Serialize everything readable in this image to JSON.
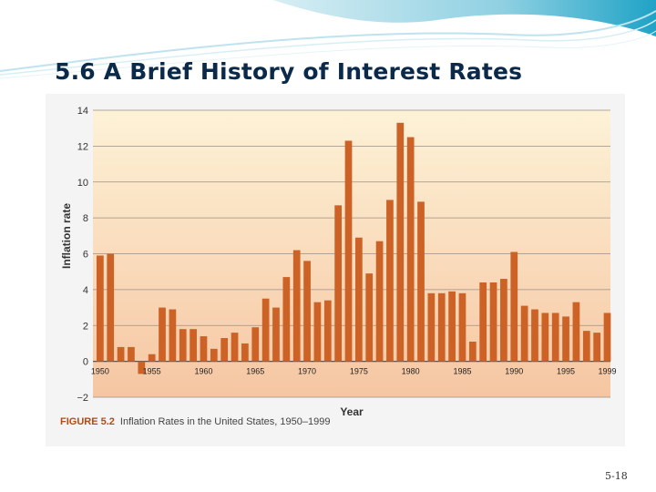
{
  "slide": {
    "title": "5.6 A Brief History of Interest Rates",
    "page_number": "5-18",
    "figure_number": "FIGURE 5.2",
    "figure_caption": "Inflation Rates in the United States, 1950–1999"
  },
  "colors": {
    "bar": "#cc6226",
    "title": "#0b2a4a",
    "figure_number": "#b64a12",
    "plot_top": "#fdf2d7",
    "plot_bottom": "#f6c6a2"
  },
  "chart_data": {
    "type": "bar",
    "xlabel": "Year",
    "ylabel": "Inflation rate",
    "ylim": [
      -2,
      14
    ],
    "yticks": [
      -2,
      0,
      2,
      4,
      6,
      8,
      10,
      12,
      14
    ],
    "grid": true,
    "xtick_labels": [
      "1950",
      "1955",
      "1960",
      "1965",
      "1970",
      "1975",
      "1980",
      "1985",
      "1990",
      "1995",
      "1999"
    ],
    "categories": [
      "1950",
      "1951",
      "1952",
      "1953",
      "1954",
      "1955",
      "1956",
      "1957",
      "1958",
      "1959",
      "1960",
      "1961",
      "1962",
      "1963",
      "1964",
      "1965",
      "1966",
      "1967",
      "1968",
      "1969",
      "1970",
      "1971",
      "1972",
      "1973",
      "1974",
      "1975",
      "1976",
      "1977",
      "1978",
      "1979",
      "1980",
      "1981",
      "1982",
      "1983",
      "1984",
      "1985",
      "1986",
      "1987",
      "1988",
      "1989",
      "1990",
      "1991",
      "1992",
      "1993",
      "1994",
      "1995",
      "1996",
      "1997",
      "1998",
      "1999"
    ],
    "values": [
      5.9,
      6.0,
      0.8,
      0.8,
      -0.7,
      0.4,
      3.0,
      2.9,
      1.8,
      1.8,
      1.4,
      0.7,
      1.3,
      1.6,
      1.0,
      1.9,
      3.5,
      3.0,
      4.7,
      6.2,
      5.6,
      3.3,
      3.4,
      8.7,
      12.3,
      6.9,
      4.9,
      6.7,
      9.0,
      13.3,
      12.5,
      8.9,
      3.8,
      3.8,
      3.9,
      3.8,
      1.1,
      4.4,
      4.4,
      4.6,
      6.1,
      3.1,
      2.9,
      2.7,
      2.7,
      2.5,
      3.3,
      1.7,
      1.6,
      2.7
    ]
  }
}
